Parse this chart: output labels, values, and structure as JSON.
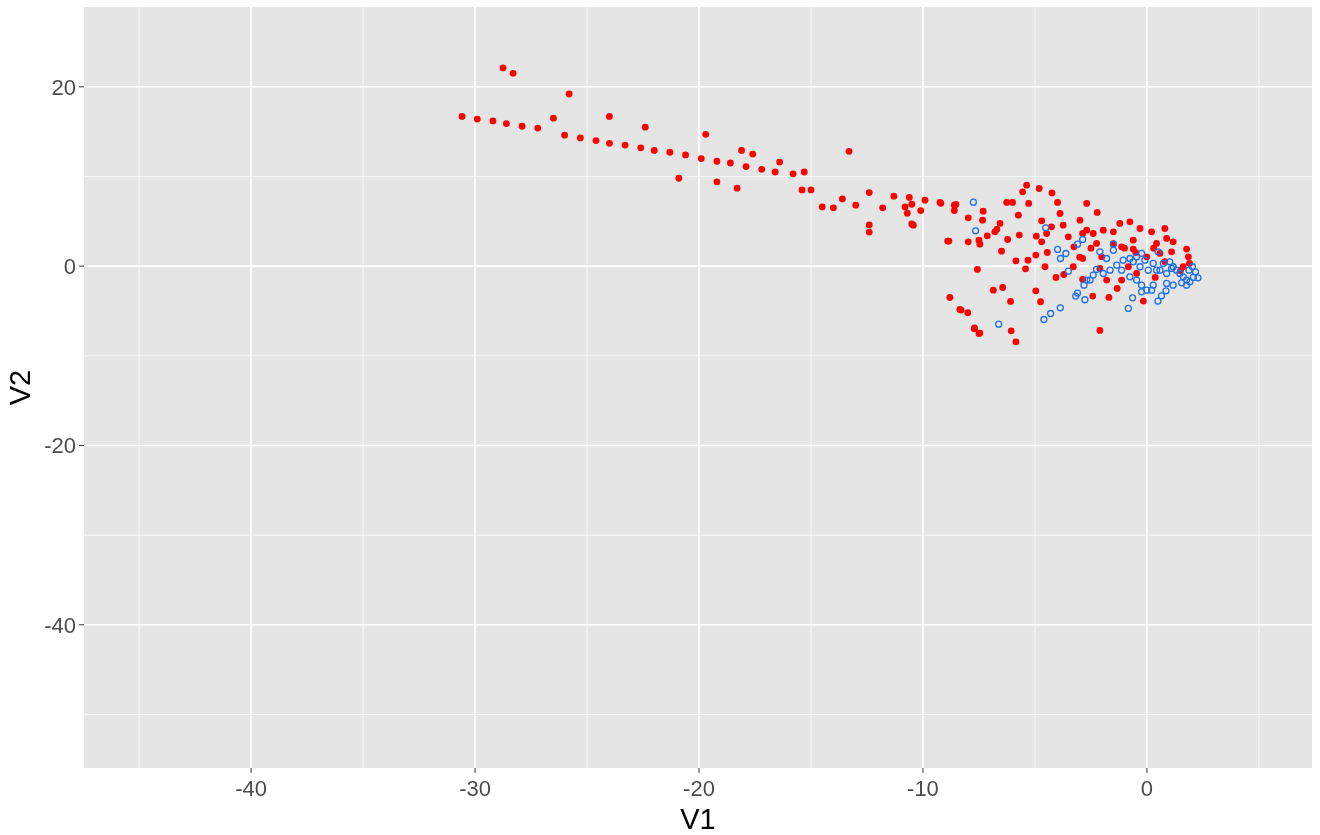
{
  "chart_data": {
    "type": "scatter",
    "xlabel": "V1",
    "ylabel": "V2",
    "xlim": [
      -47.46,
      7.37
    ],
    "ylim": [
      -55.97,
      28.9
    ],
    "xticks": [
      {
        "value": -45,
        "label": null
      },
      -40,
      {
        "value": -35,
        "label": null
      },
      -30,
      {
        "value": -25,
        "label": null
      },
      -20,
      {
        "value": -15,
        "label": null
      },
      -10,
      {
        "value": -5,
        "label": null
      },
      0,
      {
        "value": 5,
        "label": null
      }
    ],
    "yticks": [
      {
        "value": -50,
        "label": null
      },
      -40,
      {
        "value": -30,
        "label": null
      },
      -20,
      {
        "value": -10,
        "label": null
      },
      0,
      {
        "value": 10,
        "label": null
      },
      20
    ],
    "grid": true,
    "marker": "circle",
    "series": [
      {
        "color": "#ff0000",
        "x": [
          -30.58,
          -29.9,
          -29.2,
          -28.6,
          -27.9,
          -27.2,
          -26.5,
          -26.0,
          -25.3,
          -24.6,
          -24.0,
          -23.3,
          -22.6,
          -22.0,
          -21.3,
          -20.6,
          -19.9,
          -19.2,
          -18.6,
          -17.9,
          -17.2,
          -16.6,
          -15.8,
          -28.75,
          -28.3,
          -25.8,
          -24.0,
          -22.4,
          -19.7,
          -20.9,
          -19.2,
          -18.1,
          -17.6,
          -18.3,
          -13.3,
          -16.4,
          -15.3,
          -15.4,
          -15.0,
          -14.5,
          -14.0,
          -13.6,
          -13.0,
          -12.4,
          -12.4,
          -12.4,
          -11.8,
          -11.3,
          -10.8,
          -10.5,
          -10.5,
          -10.1,
          -9.2,
          -8.6,
          -8.6,
          -8.9,
          -8.8,
          -8.3,
          -8.0,
          -7.7,
          -7.5,
          -7.5,
          -6.7,
          -5.37,
          -4.81,
          -4.24,
          -5.55,
          -6.26,
          -6.0,
          -5.28,
          -3.99,
          -2.69,
          -2.22,
          -7.31,
          -7.98,
          -8.53,
          -8.84,
          -7.98,
          -7.46,
          -6.56,
          -6.79,
          -6.22,
          -5.74,
          -5.7,
          -6.49,
          -5.85,
          -5.31,
          -5.42,
          -7.57,
          -4.94,
          -4.7,
          -4.7,
          -4.48,
          -4.96,
          -4.45,
          -4.55,
          -4.06,
          -3.71,
          -3.88,
          -4.26,
          -3.74,
          -3.51,
          -3.26,
          -2.87,
          -2.99,
          -2.69,
          -2.4,
          -3.29,
          -2.87,
          -2.25,
          -1.95,
          -2.02,
          -2.1,
          -1.8,
          -2.87,
          -2.42,
          -1.7,
          -2.1,
          -1.33,
          -1.21,
          -1.5,
          -0.76,
          -0.31,
          -0.61,
          -1.13,
          -1.13,
          -0.16,
          -0.83,
          -0.46,
          0.21,
          0.8,
          0.43,
          0.88,
          1.17,
          1.1,
          0.37,
          1.77,
          1.85,
          1.62,
          0.58,
          -0.01,
          -0.61,
          -6.86,
          -6.44,
          -6.09,
          -4.96,
          -4.75,
          -8.35,
          -7.71,
          -7.46,
          -6.06,
          -5.85,
          -10.43,
          -10.7,
          -9.91,
          -9.24,
          -10.61,
          -7.13,
          -7.34,
          -1.0,
          -0.5,
          0.3,
          -1.5,
          0.8,
          -2.5,
          -3.0,
          1.9,
          1.5
        ],
        "values": [
          16.7,
          16.4,
          16.2,
          15.9,
          15.6,
          15.4,
          16.5,
          14.6,
          14.3,
          14.0,
          13.7,
          13.5,
          13.2,
          12.9,
          12.7,
          12.4,
          12.0,
          11.7,
          11.5,
          11.1,
          10.8,
          10.5,
          10.3,
          22.1,
          21.5,
          19.2,
          16.7,
          15.5,
          14.7,
          9.8,
          9.4,
          12.9,
          12.5,
          8.7,
          12.8,
          11.6,
          10.5,
          8.5,
          8.5,
          6.6,
          6.5,
          7.5,
          6.8,
          8.2,
          4.6,
          3.8,
          6.5,
          7.8,
          6.6,
          6.9,
          4.7,
          6.2,
          7.0,
          6.8,
          6.2,
          2.8,
          -3.5,
          -4.9,
          -5.2,
          -6.9,
          -7.5,
          2.9,
          4.1,
          9.03,
          8.66,
          8.17,
          8.29,
          7.1,
          7.1,
          6.99,
          7.1,
          6.99,
          5.99,
          6.13,
          5.39,
          6.88,
          2.79,
          2.71,
          2.45,
          4.76,
          3.83,
          2.97,
          5.68,
          3.46,
          1.67,
          0.59,
          0.67,
          -0.3,
          -0.37,
          3.34,
          2.71,
          5.05,
          3.64,
          1.23,
          1.52,
          -0.07,
          -1.26,
          -0.93,
          5.87,
          4.38,
          4.57,
          3.27,
          2.15,
          3.64,
          5.13,
          4.01,
          3.64,
          -0.07,
          0.86,
          2.53,
          4.01,
          1.04,
          -0.26,
          -1.56,
          -1.49,
          -3.34,
          -3.49,
          -7.17,
          -2.49,
          4.76,
          3.83,
          4.94,
          4.2,
          2.9,
          2.15,
          -1.56,
          -3.9,
          -0.07,
          -0.82,
          3.83,
          4.2,
          2.53,
          3.09,
          2.71,
          1.6,
          -1.26,
          1.9,
          1.04,
          -0.07,
          1.42,
          1.04,
          1.9,
          -2.68,
          -2.38,
          -3.94,
          -2.75,
          -3.97,
          -4.83,
          -6.99,
          -7.47,
          -7.21,
          -8.44,
          4.57,
          5.9,
          7.36,
          7.1,
          7.66,
          3.38,
          5.13,
          2.0,
          1.5,
          2.0,
          2.5,
          0.5,
          2.0,
          1.0,
          0.3,
          -0.5
        ]
      },
      {
        "color": "#1f6fe6",
        "x": [
          -7.75,
          -7.65,
          -6.62,
          -4.6,
          -4.3,
          -3.87,
          -3.18,
          -3.1,
          -2.77,
          -2.81,
          -2.69,
          -3.51,
          -3.99,
          -3.62,
          -3.86,
          -4.52,
          -2.87,
          -3.1,
          -2.25,
          -2.1,
          -1.8,
          -1.5,
          -1.5,
          -1.35,
          -1.06,
          -0.83,
          -0.64,
          -0.24,
          -0.01,
          0.21,
          0.28,
          -0.24,
          0.49,
          0.65,
          0.85,
          1.17,
          0.88,
          -0.61,
          -0.46,
          -0.76,
          -0.31,
          -0.09,
          -0.24,
          0.28,
          0.58,
          0.73,
          0.88,
          1.1,
          1.32,
          1.47,
          1.62,
          1.77,
          1.92,
          2.07,
          2.28,
          2.17,
          2.03,
          1.88,
          1.02,
          1.17,
          1.77,
          1.55,
          -1.13,
          -1.65,
          -1.95,
          -2.4,
          -2.54,
          0.5,
          0.43,
          0.06,
          -0.46,
          -0.76
        ],
        "values": [
          7.13,
          3.94,
          -6.47,
          -5.95,
          -5.28,
          -4.65,
          -3.34,
          -3.0,
          -3.75,
          -2.12,
          -1.56,
          -0.56,
          1.86,
          1.41,
          0.85,
          4.27,
          2.97,
          2.45,
          -0.37,
          1.6,
          0.85,
          1.78,
          2.45,
          0.11,
          0.67,
          -4.72,
          -3.53,
          -2.12,
          -2.68,
          -2.68,
          -2.12,
          -2.86,
          -3.9,
          -3.31,
          -2.75,
          -2.12,
          -1.93,
          0.48,
          1.04,
          0.85,
          -0.07,
          0.67,
          1.42,
          0.3,
          -0.45,
          0.3,
          -0.82,
          -0.26,
          -0.45,
          -0.82,
          -1.19,
          -1.56,
          -1.75,
          -1.26,
          -1.3,
          -0.63,
          -0.07,
          -0.45,
          0.48,
          -0.07,
          -2.12,
          -1.86,
          -0.45,
          -0.45,
          -0.82,
          -1.0,
          -1.56,
          1.6,
          -0.45,
          -0.45,
          -1.56,
          -1.19
        ]
      }
    ]
  }
}
